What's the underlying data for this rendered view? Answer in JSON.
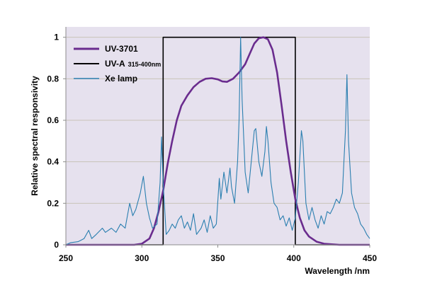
{
  "chart_data": {
    "type": "line",
    "xlabel": "Wavelength /nm",
    "ylabel": "Relative spectral responsivity",
    "xlim": [
      250,
      450
    ],
    "ylim": [
      0,
      1.05
    ],
    "x_ticks": [
      "250",
      "300",
      "350",
      "400",
      "450"
    ],
    "y_ticks": [
      "0",
      "0.2",
      "0.4",
      "0.6",
      "0.8",
      "1"
    ],
    "grid": "horizontal",
    "legend": "top-left",
    "background_color": "#e6e1ee",
    "series": [
      {
        "name": "UV-3701",
        "color": "#6a2c8e",
        "points": [
          [
            250,
            0
          ],
          [
            295,
            0
          ],
          [
            300,
            0.005
          ],
          [
            305,
            0.03
          ],
          [
            308,
            0.08
          ],
          [
            311,
            0.16
          ],
          [
            314,
            0.26
          ],
          [
            317,
            0.39
          ],
          [
            320,
            0.5
          ],
          [
            323,
            0.6
          ],
          [
            326,
            0.67
          ],
          [
            330,
            0.72
          ],
          [
            334,
            0.76
          ],
          [
            338,
            0.785
          ],
          [
            342,
            0.8
          ],
          [
            346,
            0.803
          ],
          [
            350,
            0.797
          ],
          [
            353,
            0.787
          ],
          [
            356,
            0.785
          ],
          [
            360,
            0.8
          ],
          [
            364,
            0.83
          ],
          [
            368,
            0.87
          ],
          [
            371,
            0.92
          ],
          [
            374,
            0.97
          ],
          [
            377,
            0.995
          ],
          [
            380,
            1.0
          ],
          [
            383,
            0.99
          ],
          [
            386,
            0.94
          ],
          [
            389,
            0.83
          ],
          [
            392,
            0.67
          ],
          [
            395,
            0.5
          ],
          [
            398,
            0.35
          ],
          [
            401,
            0.22
          ],
          [
            404,
            0.13
          ],
          [
            407,
            0.07
          ],
          [
            410,
            0.04
          ],
          [
            415,
            0.015
          ],
          [
            420,
            0.005
          ],
          [
            430,
            0
          ],
          [
            450,
            0
          ]
        ]
      },
      {
        "name": "UV-A",
        "name_suffix": "315-400nm",
        "color": "#000000",
        "points": [
          [
            250,
            0
          ],
          [
            314,
            0
          ],
          [
            314,
            1.0
          ],
          [
            401,
            1.0
          ],
          [
            401,
            0
          ],
          [
            450,
            0
          ]
        ]
      },
      {
        "name": "Xe lamp",
        "color": "#2b7fb0",
        "points": [
          [
            250,
            0.0
          ],
          [
            253,
            0.01
          ],
          [
            258,
            0.015
          ],
          [
            262,
            0.03
          ],
          [
            265,
            0.07
          ],
          [
            267,
            0.03
          ],
          [
            270,
            0.05
          ],
          [
            274,
            0.08
          ],
          [
            276,
            0.06
          ],
          [
            280,
            0.08
          ],
          [
            283,
            0.06
          ],
          [
            286,
            0.1
          ],
          [
            289,
            0.08
          ],
          [
            292,
            0.2
          ],
          [
            294,
            0.14
          ],
          [
            296,
            0.17
          ],
          [
            299,
            0.25
          ],
          [
            301,
            0.33
          ],
          [
            303,
            0.2
          ],
          [
            305,
            0.13
          ],
          [
            307,
            0.08
          ],
          [
            310,
            0.1
          ],
          [
            312,
            0.3
          ],
          [
            313,
            0.52
          ],
          [
            314,
            0.3
          ],
          [
            316,
            0.05
          ],
          [
            318,
            0.07
          ],
          [
            320,
            0.1
          ],
          [
            322,
            0.08
          ],
          [
            324,
            0.12
          ],
          [
            326,
            0.14
          ],
          [
            328,
            0.08
          ],
          [
            330,
            0.11
          ],
          [
            332,
            0.07
          ],
          [
            334,
            0.15
          ],
          [
            336,
            0.05
          ],
          [
            339,
            0.08
          ],
          [
            341,
            0.12
          ],
          [
            343,
            0.06
          ],
          [
            345,
            0.14
          ],
          [
            347,
            0.08
          ],
          [
            349,
            0.1
          ],
          [
            351,
            0.32
          ],
          [
            352,
            0.22
          ],
          [
            354,
            0.35
          ],
          [
            356,
            0.25
          ],
          [
            358,
            0.37
          ],
          [
            359,
            0.28
          ],
          [
            361,
            0.2
          ],
          [
            363,
            0.4
          ],
          [
            364,
            0.6
          ],
          [
            365,
            1.0
          ],
          [
            366,
            0.7
          ],
          [
            368,
            0.35
          ],
          [
            370,
            0.25
          ],
          [
            372,
            0.4
          ],
          [
            374,
            0.55
          ],
          [
            375,
            0.56
          ],
          [
            377,
            0.4
          ],
          [
            379,
            0.33
          ],
          [
            381,
            0.45
          ],
          [
            382,
            0.57
          ],
          [
            383,
            0.5
          ],
          [
            385,
            0.3
          ],
          [
            387,
            0.2
          ],
          [
            389,
            0.18
          ],
          [
            391,
            0.12
          ],
          [
            393,
            0.14
          ],
          [
            395,
            0.09
          ],
          [
            397,
            0.13
          ],
          [
            399,
            0.07
          ],
          [
            401,
            0.13
          ],
          [
            403,
            0.3
          ],
          [
            405,
            0.55
          ],
          [
            406,
            0.5
          ],
          [
            408,
            0.2
          ],
          [
            410,
            0.12
          ],
          [
            412,
            0.18
          ],
          [
            414,
            0.12
          ],
          [
            416,
            0.08
          ],
          [
            418,
            0.14
          ],
          [
            420,
            0.1
          ],
          [
            422,
            0.16
          ],
          [
            424,
            0.15
          ],
          [
            426,
            0.18
          ],
          [
            428,
            0.22
          ],
          [
            430,
            0.2
          ],
          [
            432,
            0.25
          ],
          [
            433,
            0.4
          ],
          [
            434,
            0.55
          ],
          [
            435,
            0.82
          ],
          [
            436,
            0.5
          ],
          [
            438,
            0.25
          ],
          [
            440,
            0.18
          ],
          [
            442,
            0.15
          ],
          [
            444,
            0.1
          ],
          [
            446,
            0.08
          ],
          [
            448,
            0.05
          ],
          [
            450,
            0.03
          ]
        ]
      }
    ]
  }
}
